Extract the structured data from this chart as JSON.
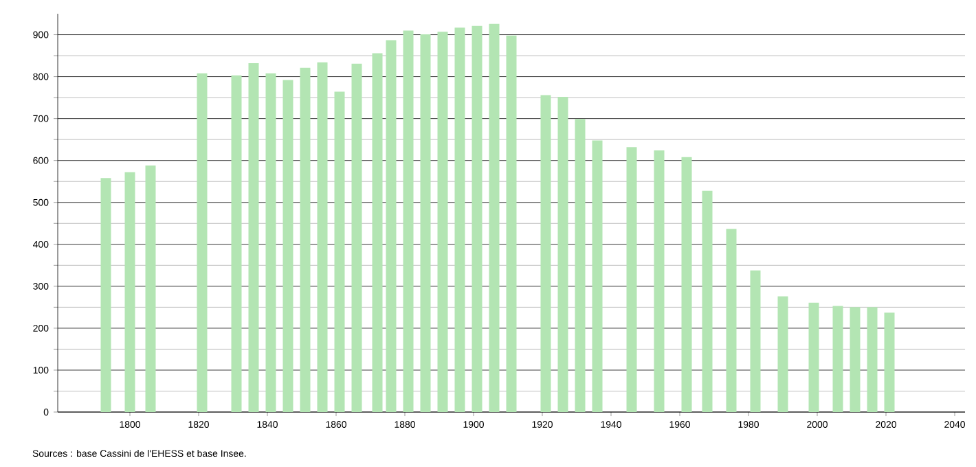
{
  "chart_data": {
    "type": "bar",
    "x": [
      1793,
      1800,
      1806,
      1821,
      1831,
      1836,
      1841,
      1846,
      1851,
      1856,
      1861,
      1866,
      1872,
      1876,
      1881,
      1886,
      1891,
      1896,
      1901,
      1906,
      1911,
      1921,
      1926,
      1931,
      1936,
      1946,
      1954,
      1962,
      1968,
      1975,
      1982,
      1990,
      1999,
      2006,
      2011,
      2016,
      2021
    ],
    "values": [
      558,
      572,
      588,
      808,
      803,
      832,
      808,
      792,
      821,
      834,
      764,
      831,
      856,
      887,
      910,
      901,
      907,
      917,
      921,
      926,
      898,
      756,
      752,
      699,
      648,
      632,
      624,
      608,
      528,
      437,
      338,
      276,
      261,
      253,
      250,
      250,
      237
    ],
    "color": "#b3e5b3",
    "xlim": [
      1779,
      2043
    ],
    "ylim": [
      0,
      950
    ],
    "xticks": [
      1800,
      1820,
      1840,
      1860,
      1880,
      1900,
      1920,
      1940,
      1960,
      1980,
      2000,
      2020,
      2040
    ],
    "yticks": [
      0,
      100,
      200,
      300,
      400,
      500,
      600,
      700,
      800,
      900
    ],
    "grid": "y",
    "annotations": [
      "Sources : base Cassini de l'EHESS et base Insee."
    ]
  }
}
